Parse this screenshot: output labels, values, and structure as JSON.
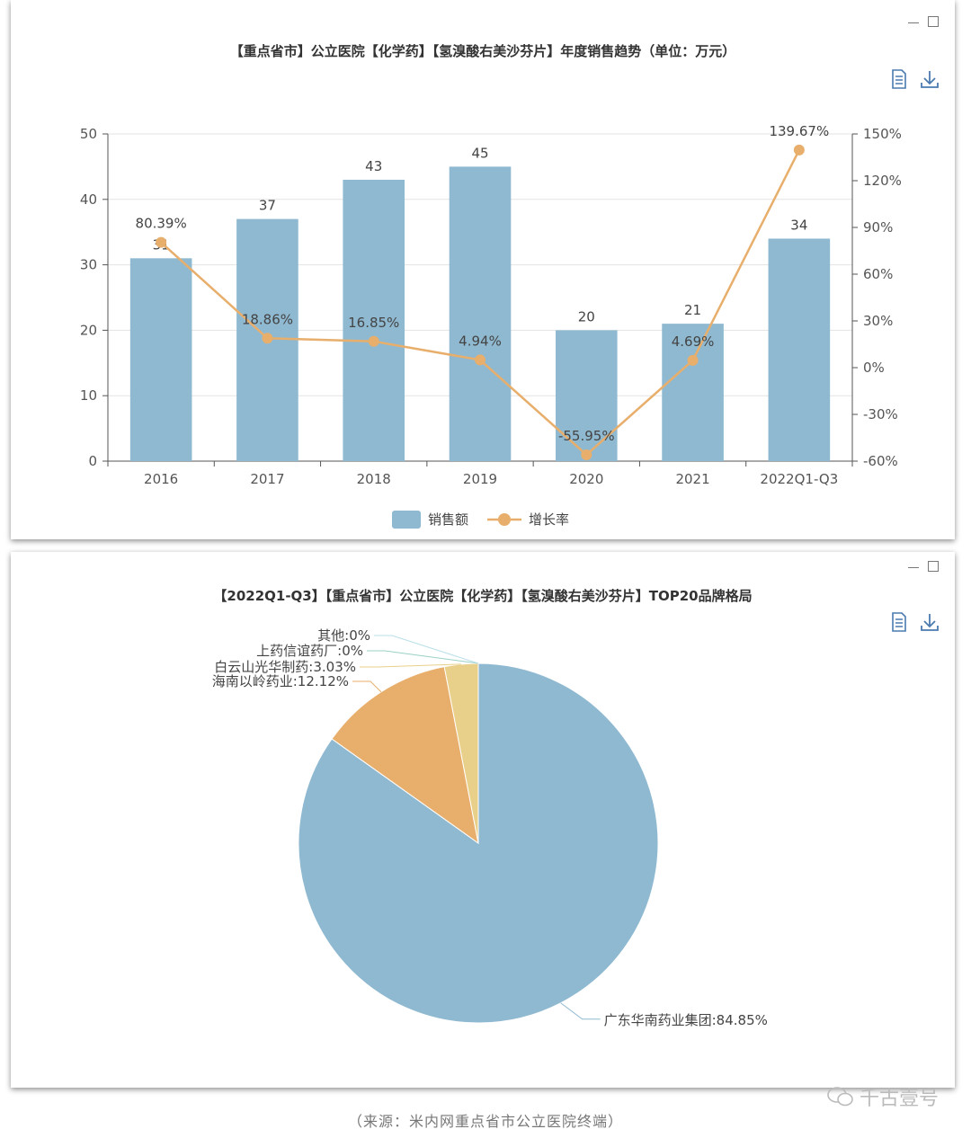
{
  "source_note": "（来源：米内网重点省市公立医院终端）",
  "watermark": "千古壹号",
  "icons": {
    "data_view": "document-icon",
    "download": "download-icon",
    "minimize": "minimize-icon",
    "maximize": "maximize-icon",
    "watermark": "wechat-icon"
  },
  "colors": {
    "bar": "#8fb9d1",
    "line": "#e8ae6b",
    "pie": [
      "#8fb9d1",
      "#e8ae6b",
      "#e8d08a",
      "#9ad0c4",
      "#b8dfe8"
    ]
  },
  "chart_data": [
    {
      "type": "bar",
      "title": "【重点省市】公立医院【化学药】【氢溴酸右美沙芬片】年度销售趋势（单位：万元）",
      "categories": [
        "2016",
        "2017",
        "2018",
        "2019",
        "2020",
        "2021",
        "2022Q1-Q3"
      ],
      "series": [
        {
          "name": "销售额",
          "type": "bar",
          "values": [
            31,
            37,
            43,
            45,
            20,
            21,
            34
          ],
          "labels": [
            "31",
            "37",
            "43",
            "45",
            "20",
            "21",
            "34"
          ]
        },
        {
          "name": "增长率",
          "type": "line",
          "axis": "right",
          "values": [
            80.39,
            18.86,
            16.85,
            4.94,
            -55.95,
            4.69,
            139.67
          ],
          "labels": [
            "80.39%",
            "18.86%",
            "16.85%",
            "4.94%",
            "-55.95%",
            "4.69%",
            "139.67%"
          ]
        }
      ],
      "ylim": [
        0,
        50
      ],
      "y_ticks": [
        "0",
        "10",
        "20",
        "30",
        "40",
        "50"
      ],
      "y2lim": [
        -60,
        150
      ],
      "y2_ticks": [
        "-60%",
        "-30%",
        "0%",
        "30%",
        "60%",
        "90%",
        "120%",
        "150%"
      ],
      "grid": true,
      "legend": "bottom"
    },
    {
      "type": "pie",
      "title": "【2022Q1-Q3】【重点省市】公立医院【化学药】【氢溴酸右美沙芬片】TOP20品牌格局",
      "slices": [
        {
          "name": "广东华南药业集团",
          "value": 84.85,
          "label": "广东华南药业集团:84.85%"
        },
        {
          "name": "海南以岭药业",
          "value": 12.12,
          "label": "海南以岭药业:12.12%"
        },
        {
          "name": "白云山光华制药",
          "value": 3.03,
          "label": "白云山光华制药:3.03%"
        },
        {
          "name": "上药信谊药厂",
          "value": 0,
          "label": "上药信谊药厂:0%"
        },
        {
          "name": "其他",
          "value": 0,
          "label": "其他:0%"
        }
      ]
    }
  ]
}
